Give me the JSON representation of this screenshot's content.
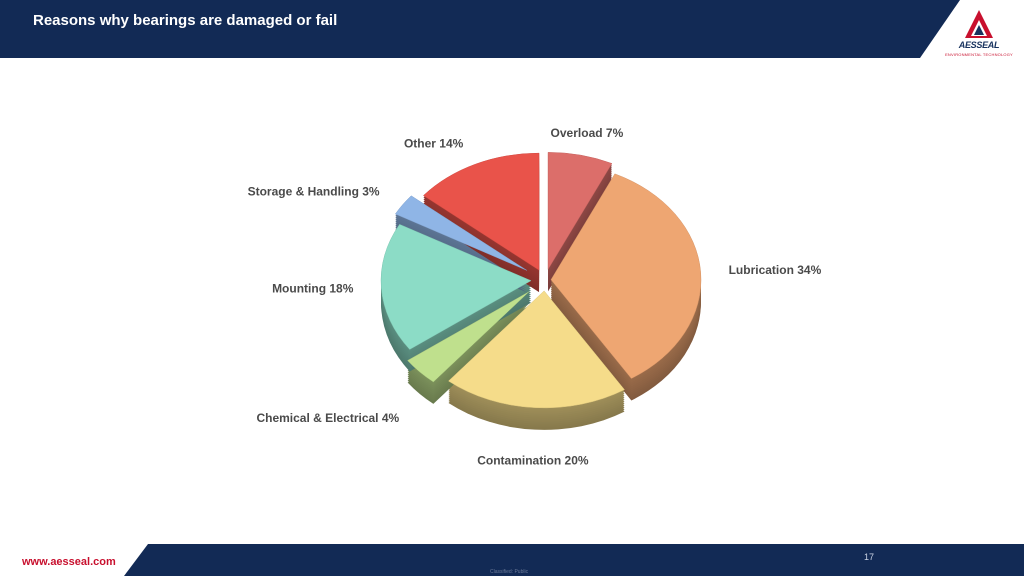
{
  "slide": {
    "title": "Reasons why bearings are damaged or fail",
    "website": "www.aesseal.com",
    "page_number": "17",
    "classification": "Classified: Public",
    "logo_text": "AESSEAL",
    "logo_subtext": "ENVIRONMENTAL TECHNOLOGY"
  },
  "colors": {
    "header_navy": "#122a55",
    "footer_navy": "#122a55",
    "brand_red": "#c8102e"
  },
  "chart_data": {
    "type": "pie",
    "title": "",
    "slices": [
      {
        "label": "Overload 7%",
        "name": "Overload",
        "value": 7,
        "color": "#dc6e6a"
      },
      {
        "label": "Lubrication 34%",
        "name": "Lubrication",
        "value": 34,
        "color": "#eea672"
      },
      {
        "label": "Contamination 20%",
        "name": "Contamination",
        "value": 20,
        "color": "#f5dc8a"
      },
      {
        "label": "Chemical & Electrical 4%",
        "name": "Chemical & Electrical",
        "value": 4,
        "color": "#bfe08d"
      },
      {
        "label": "Mounting 18%",
        "name": "Mounting",
        "value": 18,
        "color": "#8cdcc6"
      },
      {
        "label": "Storage & Handling 3%",
        "name": "Storage & Handling",
        "value": 3,
        "color": "#8fb5e6"
      },
      {
        "label": "Other 14%",
        "name": "Other",
        "value": 14,
        "color": "#e9534a"
      }
    ],
    "exploded": true,
    "style": "3d",
    "legend": "none"
  }
}
